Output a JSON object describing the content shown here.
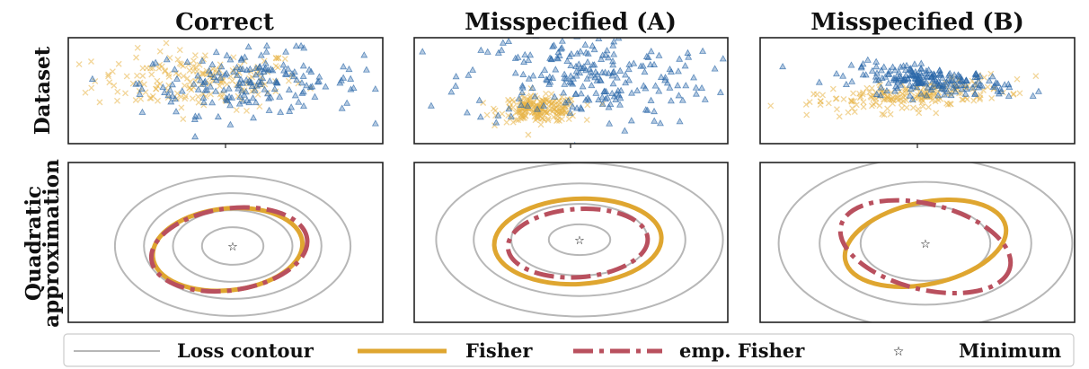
{
  "figure": {
    "column_titles": [
      "Correct",
      "Misspecified (A)",
      "Misspecified (B)"
    ],
    "row_labels": {
      "dataset": [
        "Dataset"
      ],
      "quadratic": [
        "Quadratic",
        "approximation"
      ]
    }
  },
  "legend": {
    "items": [
      {
        "label": "Loss contour",
        "style": "loss"
      },
      {
        "label": "Fisher",
        "style": "fisher"
      },
      {
        "label": "emp. Fisher",
        "style": "empfisher"
      },
      {
        "label": "Minimum",
        "style": "minimum"
      }
    ]
  },
  "colors": {
    "class_a": "#e7b243",
    "class_b": "#2a66a8",
    "loss_contour": "#b7b7b7",
    "fisher": "#dfa630",
    "emp_fisher": "#b9505e",
    "minimum": "#000000",
    "frame": "#222222"
  },
  "chart_data": [
    {
      "type": "scatter",
      "panel": "dataset",
      "column": "Correct",
      "series": [
        {
          "marker": "x",
          "color": "#e7b243",
          "center": [
            -0.5,
            0.2
          ],
          "spread": [
            1.0,
            0.28
          ],
          "corr": 0.0,
          "count": 180
        },
        {
          "marker": "triangle",
          "color": "#2a66a8",
          "center": [
            0.5,
            0.15
          ],
          "spread": [
            1.05,
            0.3
          ],
          "corr": 0.0,
          "count": 180
        }
      ]
    },
    {
      "type": "scatter",
      "panel": "dataset",
      "column": "Misspecified (A)",
      "series": [
        {
          "marker": "x",
          "color": "#e7b243",
          "center": [
            -0.6,
            -0.35
          ],
          "spread": [
            0.38,
            0.12
          ],
          "corr": 0.0,
          "count": 200
        },
        {
          "marker": "triangle",
          "color": "#2a66a8",
          "center": [
            0.3,
            0.25
          ],
          "spread": [
            1.2,
            0.45
          ],
          "corr": 0.0,
          "count": 230
        }
      ]
    },
    {
      "type": "scatter",
      "panel": "dataset",
      "column": "Misspecified (B)",
      "series": [
        {
          "marker": "x",
          "color": "#e7b243",
          "center": [
            -0.1,
            -0.1
          ],
          "spread": [
            0.9,
            0.16
          ],
          "corr": 0.5,
          "count": 200
        },
        {
          "marker": "triangle",
          "color": "#2a66a8",
          "center": [
            0.25,
            0.2
          ],
          "spread": [
            0.75,
            0.14
          ],
          "corr": -0.45,
          "count": 200
        }
      ]
    },
    {
      "type": "contour",
      "panel": "quadratic",
      "column": "Correct",
      "minimum": [
        0.0,
        0.0
      ],
      "loss_contour_radii": [
        [
          0.9,
          0.55
        ],
        [
          1.75,
          1.05
        ],
        [
          2.6,
          1.55
        ],
        [
          3.45,
          2.05
        ]
      ],
      "fisher": {
        "center": [
          -0.15,
          -0.1
        ],
        "radii": [
          2.2,
          1.2
        ],
        "angle": -6
      },
      "emp_fisher": {
        "center": [
          -0.1,
          -0.1
        ],
        "radii": [
          2.3,
          1.2
        ],
        "angle": -8
      }
    },
    {
      "type": "contour",
      "panel": "quadratic",
      "column": "Misspecified (A)",
      "minimum": [
        0.0,
        0.0
      ],
      "loss_contour_radii": [
        [
          0.9,
          0.45
        ],
        [
          2.0,
          1.05
        ],
        [
          3.1,
          1.65
        ],
        [
          4.2,
          2.25
        ]
      ],
      "fisher": {
        "center": [
          -0.05,
          -0.05
        ],
        "radii": [
          2.45,
          1.25
        ],
        "angle": -3
      },
      "emp_fisher": {
        "center": [
          -0.05,
          -0.1
        ],
        "radii": [
          2.05,
          1.0
        ],
        "angle": -4
      }
    },
    {
      "type": "contour",
      "panel": "quadratic",
      "column": "Misspecified (B)",
      "minimum": [
        0.0,
        0.0
      ],
      "loss_contour_radii": [
        [
          1.9,
          1.1
        ],
        [
          3.1,
          1.8
        ],
        [
          4.3,
          2.5
        ]
      ],
      "fisher": {
        "center": [
          0.0,
          0.0
        ],
        "radii": [
          2.4,
          1.2
        ],
        "angle": -12
      },
      "emp_fisher": {
        "center": [
          0.0,
          -0.1
        ],
        "radii": [
          2.55,
          1.25
        ],
        "angle": 14
      }
    }
  ]
}
